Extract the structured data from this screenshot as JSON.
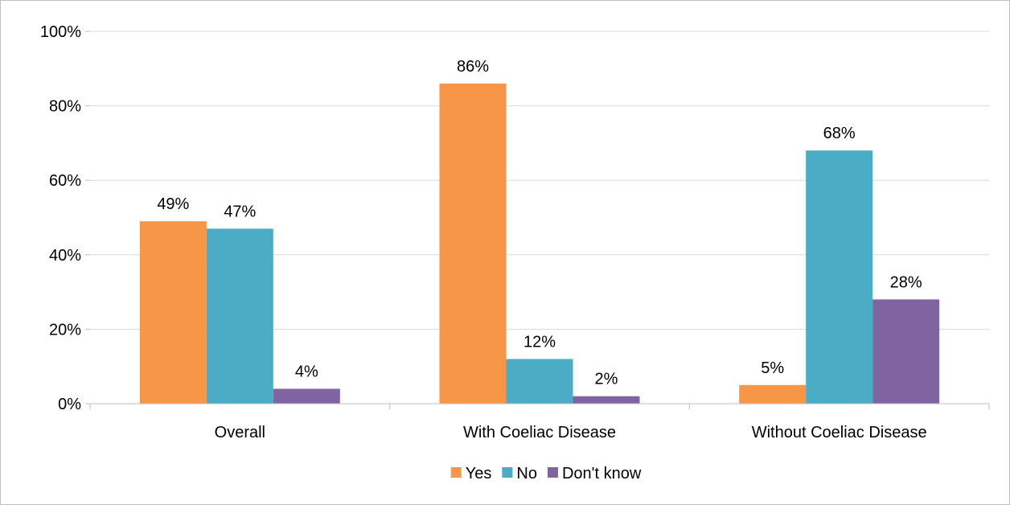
{
  "chart_data": {
    "type": "bar",
    "categories": [
      "Overall",
      "With Coeliac Disease",
      "Without Coeliac Disease"
    ],
    "series": [
      {
        "name": "Yes",
        "values": [
          49,
          86,
          5
        ],
        "labels": [
          "49%",
          "86%",
          "5%"
        ],
        "color": "#F79646"
      },
      {
        "name": "No",
        "values": [
          47,
          12,
          68
        ],
        "labels": [
          "47%",
          "12%",
          "68%"
        ],
        "color": "#4BACC6"
      },
      {
        "name": "Don't know",
        "values": [
          4,
          2,
          28
        ],
        "labels": [
          "4%",
          "2%",
          "28%"
        ],
        "color": "#8064A2"
      }
    ],
    "ylim": [
      0,
      100
    ],
    "yticks": [
      0,
      20,
      40,
      60,
      80,
      100
    ],
    "ytick_labels": [
      "0%",
      "20%",
      "40%",
      "60%",
      "80%",
      "100%"
    ],
    "grid": true,
    "legend_position": "bottom",
    "gridline_color": "#d9d9d9",
    "axis_color": "#bfbfbf"
  }
}
